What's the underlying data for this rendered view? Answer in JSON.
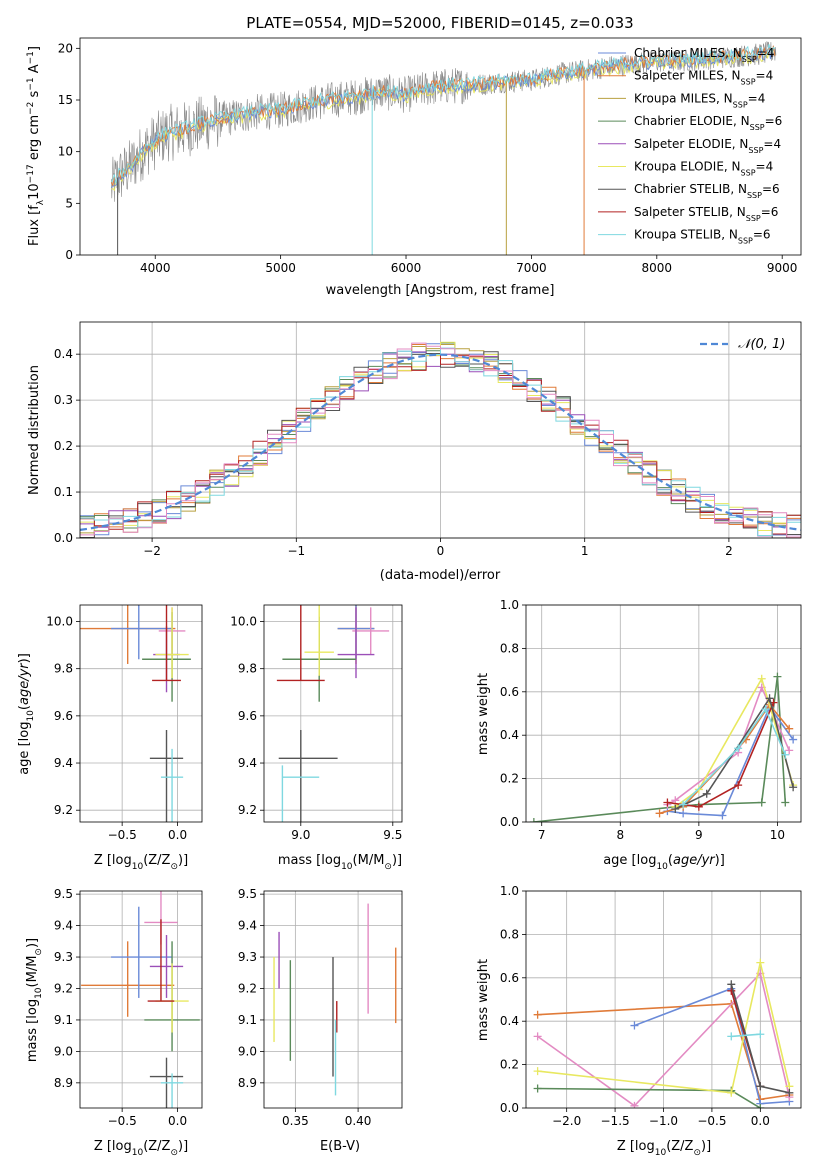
{
  "colors": {
    "Chabrier MILES": "#6a8ad8",
    "Salpeter MILES": "#e07b39",
    "Kroupa MILES": "#b8a040",
    "Chabrier ELODIE": "#5a8a5a",
    "Salpeter ELODIE": "#9b4fb8",
    "Kroupa ELODIE": "#e8e860",
    "Chabrier STELIB": "#555555",
    "Salpeter STELIB": "#b22222",
    "Kroupa STELIB": "#7fd8e0",
    "pink": "#e38bc3",
    "normal": "#4f88d6"
  },
  "chart_data": [
    {
      "id": "spectrum",
      "type": "line",
      "title": "PLATE=0554, MJD=52000, FIBERID=0145, z=0.033",
      "xlabel": "wavelength [Angstrom, rest frame]",
      "ylabel_parts": [
        "Flux [f",
        "λ",
        "10",
        "−17",
        " erg cm",
        "−2",
        " s",
        "−1",
        " A",
        "−1",
        "]"
      ],
      "xlim": [
        3400,
        9150
      ],
      "ylim": [
        0,
        21
      ],
      "xticks": [
        4000,
        5000,
        6000,
        7000,
        8000,
        9000
      ],
      "yticks": [
        0,
        5,
        10,
        15,
        20
      ],
      "legend_position": "upper-right",
      "legend": [
        {
          "name": "Chabrier MILES",
          "nssp": "4"
        },
        {
          "name": "Salpeter MILES",
          "nssp": "4"
        },
        {
          "name": "Kroupa MILES",
          "nssp": "4"
        },
        {
          "name": "Chabrier ELODIE",
          "nssp": "6"
        },
        {
          "name": "Salpeter ELODIE",
          "nssp": "4"
        },
        {
          "name": "Kroupa ELODIE",
          "nssp": "4"
        },
        {
          "name": "Chabrier STELIB",
          "nssp": "6"
        },
        {
          "name": "Salpeter STELIB",
          "nssp": "6"
        },
        {
          "name": "Kroupa STELIB",
          "nssp": "6"
        }
      ],
      "nssp_label": "N",
      "nssp_sub": "SSP",
      "continuum": {
        "x": [
          3650,
          3700,
          3800,
          3900,
          4000,
          4100,
          4200,
          4400,
          4600,
          4800,
          5000,
          5200,
          5400,
          5600,
          5800,
          6000,
          6200,
          6400,
          6600,
          6800,
          7000,
          7200,
          7400,
          7600,
          7800,
          8000,
          8200,
          8400,
          8600,
          8800,
          8950
        ],
        "y": [
          6.5,
          7.5,
          8.5,
          10.0,
          11.0,
          11.8,
          12.0,
          12.8,
          13.3,
          13.8,
          14.0,
          14.6,
          15.0,
          15.3,
          15.8,
          15.5,
          16.2,
          16.4,
          16.5,
          16.8,
          16.9,
          17.5,
          17.8,
          18.2,
          18.5,
          18.7,
          18.8,
          19.0,
          19.2,
          19.4,
          19.7
        ]
      },
      "dropouts": [
        {
          "x": 3700,
          "to": 0,
          "color": "Chabrier STELIB"
        },
        {
          "x": 5730,
          "to": 0,
          "color": "Kroupa STELIB"
        },
        {
          "x": 6800,
          "to": 0,
          "color": "Kroupa MILES"
        },
        {
          "x": 7420,
          "to": 0,
          "color": "Salpeter MILES"
        }
      ]
    },
    {
      "id": "residuals",
      "type": "step",
      "xlabel": "(data-model)/error",
      "ylabel": "Normed distribution",
      "xlim": [
        -2.5,
        2.5
      ],
      "ylim": [
        0,
        0.47
      ],
      "xticks": [
        -2,
        -1,
        0,
        1,
        2
      ],
      "yticks": [
        0.0,
        0.1,
        0.2,
        0.3,
        0.4
      ],
      "grid": true,
      "legend": {
        "label": "𝒩(0, 1)",
        "position": "upper-right"
      },
      "bin_width": 0.1
    },
    {
      "id": "age_vs_Z",
      "type": "errorbar",
      "xlabel_parts": [
        "Z [log",
        "10",
        "(Z/Z",
        "⊙",
        ")]"
      ],
      "ylabel_parts": [
        "age  [log",
        "10",
        "(",
        "age/yr",
        ")]"
      ],
      "xlim": [
        -0.88,
        0.22
      ],
      "ylim": [
        9.15,
        10.07
      ],
      "xticks": [
        -0.5,
        0.0
      ],
      "yticks": [
        9.2,
        9.4,
        9.6,
        9.8,
        10.0
      ],
      "grid": true,
      "points": [
        {
          "x": -0.45,
          "y": 9.97,
          "xerr": [
            0.43,
            0.43
          ],
          "yerr": [
            0.2,
            0.15
          ],
          "color": "Salpeter MILES"
        },
        {
          "x": -0.35,
          "y": 9.97,
          "xerr": [
            0.25,
            0.3
          ],
          "yerr": [
            0.2,
            0.13
          ],
          "color": "Chabrier MILES"
        },
        {
          "x": -0.05,
          "y": 9.96,
          "xerr": [
            0.12,
            0.12
          ],
          "yerr": [
            0.1,
            0.1
          ],
          "color": "pink"
        },
        {
          "x": -0.1,
          "y": 9.86,
          "xerr": [
            0.12,
            0.12
          ],
          "yerr": [
            0.12,
            0.16
          ],
          "color": "Salpeter ELODIE"
        },
        {
          "x": -0.05,
          "y": 9.84,
          "xerr": [
            0.27,
            0.17
          ],
          "yerr": [
            0.2,
            0.18
          ],
          "color": "Chabrier ELODIE"
        },
        {
          "x": -0.05,
          "y": 9.86,
          "xerr": [
            0.15,
            0.15
          ],
          "yerr": [
            0.2,
            0.1
          ],
          "color": "Kroupa ELODIE"
        },
        {
          "x": -0.1,
          "y": 9.75,
          "xerr": [
            0.13,
            0.13
          ],
          "yerr": [
            0.54,
            0.0
          ],
          "color": "Salpeter STELIB"
        },
        {
          "x": -0.1,
          "y": 9.42,
          "xerr": [
            0.15,
            0.15
          ],
          "yerr": [
            0.12,
            0.5
          ],
          "color": "Chabrier STELIB"
        },
        {
          "x": -0.05,
          "y": 9.34,
          "xerr": [
            0.1,
            0.1
          ],
          "yerr": [
            0.12,
            0.2
          ],
          "color": "Kroupa STELIB"
        }
      ]
    },
    {
      "id": "age_vs_mass",
      "type": "errorbar",
      "xlabel_parts": [
        "mass [log",
        "10",
        "(M/M",
        "⊙",
        ")]"
      ],
      "xlim": [
        8.8,
        9.55
      ],
      "ylim": [
        9.15,
        10.07
      ],
      "xticks": [
        9.0,
        9.5
      ],
      "yticks": [
        9.2,
        9.4,
        9.6,
        9.8,
        10.0
      ],
      "grid": true,
      "points": [
        {
          "x": 9.3,
          "y": 9.97,
          "xerr": [
            0.1,
            0.1
          ],
          "yerr": [
            0.2,
            0.15
          ],
          "color": "Salpeter MILES"
        },
        {
          "x": 9.3,
          "y": 9.97,
          "xerr": [
            0.1,
            0.1
          ],
          "yerr": [
            0.2,
            0.13
          ],
          "color": "Chabrier MILES"
        },
        {
          "x": 9.38,
          "y": 9.96,
          "xerr": [
            0.1,
            0.1
          ],
          "yerr": [
            0.1,
            0.1
          ],
          "color": "pink"
        },
        {
          "x": 9.3,
          "y": 9.86,
          "xerr": [
            0.1,
            0.1
          ],
          "yerr": [
            0.2,
            0.1
          ],
          "color": "Salpeter ELODIE"
        },
        {
          "x": 9.1,
          "y": 9.84,
          "xerr": [
            0.2,
            0.2
          ],
          "yerr": [
            0.18,
            0.18
          ],
          "color": "Chabrier ELODIE"
        },
        {
          "x": 9.1,
          "y": 9.87,
          "xerr": [
            0.08,
            0.08
          ],
          "yerr": [
            0.2,
            0.1
          ],
          "color": "Kroupa ELODIE"
        },
        {
          "x": 9.0,
          "y": 9.75,
          "xerr": [
            0.13,
            0.13
          ],
          "yerr": [
            0.54,
            0.0
          ],
          "color": "Salpeter STELIB"
        },
        {
          "x": 9.0,
          "y": 9.42,
          "xerr": [
            0.12,
            0.2
          ],
          "yerr": [
            0.12,
            0.5
          ],
          "color": "Chabrier STELIB"
        },
        {
          "x": 8.9,
          "y": 9.34,
          "xerr": [
            0.0,
            0.2
          ],
          "yerr": [
            0.05,
            0.5
          ],
          "color": "Kroupa STELIB"
        }
      ]
    },
    {
      "id": "weight_vs_age",
      "type": "line",
      "xlabel_parts": [
        "age  [log",
        "10",
        "(",
        "age/yr",
        ")]"
      ],
      "ylabel": "mass weight",
      "xlim": [
        6.8,
        10.3
      ],
      "ylim": [
        0,
        1
      ],
      "xticks": [
        7,
        8,
        9,
        10
      ],
      "yticks": [
        0.0,
        0.2,
        0.4,
        0.6,
        0.8,
        1.0
      ],
      "grid": true,
      "series": [
        {
          "color": "Chabrier ELODIE",
          "x": [
            6.9,
            8.7,
            9.0,
            9.8,
            10.0,
            10.1
          ],
          "y": [
            0.0,
            0.07,
            0.08,
            0.09,
            0.67,
            0.09
          ]
        },
        {
          "color": "Chabrier MILES",
          "x": [
            8.6,
            8.8,
            9.3,
            9.9,
            10.2
          ],
          "y": [
            0.05,
            0.04,
            0.03,
            0.53,
            0.38
          ]
        },
        {
          "color": "Salpeter MILES",
          "x": [
            8.5,
            8.8,
            9.6,
            9.9,
            10.15
          ],
          "y": [
            0.04,
            0.07,
            0.38,
            0.54,
            0.43
          ]
        },
        {
          "color": "pink",
          "x": [
            8.6,
            8.7,
            9.5,
            9.8,
            10.15
          ],
          "y": [
            0.08,
            0.1,
            0.32,
            0.62,
            0.33
          ]
        },
        {
          "color": "Kroupa ELODIE",
          "x": [
            8.7,
            9.0,
            9.8,
            10.2
          ],
          "y": [
            0.07,
            0.15,
            0.66,
            0.17
          ]
        },
        {
          "color": "Salpeter STELIB",
          "x": [
            8.6,
            9.0,
            9.5,
            9.95
          ],
          "y": [
            0.09,
            0.07,
            0.17,
            0.55
          ]
        },
        {
          "color": "Chabrier STELIB",
          "x": [
            8.7,
            9.1,
            9.9,
            10.2
          ],
          "y": [
            0.06,
            0.13,
            0.57,
            0.16
          ]
        },
        {
          "color": "Kroupa STELIB",
          "x": [
            8.8,
            9.5,
            9.85,
            10.1
          ],
          "y": [
            0.08,
            0.34,
            0.52,
            0.31
          ]
        }
      ]
    },
    {
      "id": "mass_vs_Z",
      "type": "errorbar",
      "xlabel_parts": [
        "Z [log",
        "10",
        "(Z/Z",
        "⊙",
        ")]"
      ],
      "ylabel_parts": [
        "mass [log",
        "10",
        "(M/M",
        "⊙",
        ")]"
      ],
      "xlim": [
        -0.88,
        0.22
      ],
      "ylim": [
        8.82,
        9.51
      ],
      "xticks": [
        -0.5,
        0.0
      ],
      "yticks": [
        8.9,
        9.0,
        9.1,
        9.2,
        9.3,
        9.4,
        9.5
      ],
      "grid": true,
      "points": [
        {
          "x": -0.45,
          "y": 9.21,
          "xerr": [
            0.42,
            0.42
          ],
          "yerr": [
            0.14,
            0.1
          ],
          "color": "Salpeter MILES"
        },
        {
          "x": -0.35,
          "y": 9.3,
          "xerr": [
            0.25,
            0.3
          ],
          "yerr": [
            0.16,
            0.13
          ],
          "color": "Chabrier MILES"
        },
        {
          "x": -0.15,
          "y": 9.41,
          "xerr": [
            0.15,
            0.15
          ],
          "yerr": [
            0.1,
            0.07
          ],
          "color": "pink"
        },
        {
          "x": -0.1,
          "y": 9.27,
          "xerr": [
            0.15,
            0.15
          ],
          "yerr": [
            0.1,
            0.1
          ],
          "color": "Salpeter ELODIE"
        },
        {
          "x": -0.05,
          "y": 9.1,
          "xerr": [
            0.25,
            0.25
          ],
          "yerr": [
            0.25,
            0.1
          ],
          "color": "Chabrier ELODIE"
        },
        {
          "x": -0.05,
          "y": 9.16,
          "xerr": [
            0.15,
            0.15
          ],
          "yerr": [
            0.12,
            0.1
          ],
          "color": "Kroupa ELODIE"
        },
        {
          "x": -0.15,
          "y": 9.16,
          "xerr": [
            0.12,
            0.12
          ],
          "yerr": [
            0.26,
            0.0
          ],
          "color": "Salpeter STELIB"
        },
        {
          "x": -0.1,
          "y": 8.92,
          "xerr": [
            0.15,
            0.15
          ],
          "yerr": [
            0.06,
            0.2
          ],
          "color": "Chabrier STELIB"
        },
        {
          "x": -0.05,
          "y": 8.9,
          "xerr": [
            0.1,
            0.1
          ],
          "yerr": [
            0.03,
            0.2
          ],
          "color": "Kroupa STELIB"
        }
      ]
    },
    {
      "id": "mass_vs_ebv",
      "type": "errorbar",
      "xlabel": "E(B-V)",
      "xlim": [
        0.325,
        0.435
      ],
      "ylim": [
        8.82,
        9.51
      ],
      "xticks": [
        0.35,
        0.4
      ],
      "yticks": [
        8.9,
        9.0,
        9.1,
        9.2,
        9.3,
        9.4,
        9.5
      ],
      "grid": true,
      "points": [
        {
          "x": 0.337,
          "y": 9.29,
          "yerr": [
            0.09,
            0.09
          ],
          "color": "Salpeter ELODIE"
        },
        {
          "x": 0.333,
          "y": 9.17,
          "yerr": [
            0.13,
            0.14
          ],
          "color": "Kroupa ELODIE"
        },
        {
          "x": 0.346,
          "y": 9.1,
          "yerr": [
            0.19,
            0.13
          ],
          "color": "Chabrier ELODIE"
        },
        {
          "x": 0.38,
          "y": 9.1,
          "yerr": [
            0.2,
            0.18
          ],
          "color": "Chabrier STELIB"
        },
        {
          "x": 0.383,
          "y": 9.12,
          "yerr": [
            0.04,
            0.06
          ],
          "color": "Salpeter STELIB"
        },
        {
          "x": 0.382,
          "y": 8.98,
          "yerr": [
            0.12,
            0.12
          ],
          "color": "Kroupa STELIB"
        },
        {
          "x": 0.408,
          "y": 9.3,
          "yerr": [
            0.17,
            0.18
          ],
          "color": "pink"
        },
        {
          "x": 0.43,
          "y": 9.2,
          "yerr": [
            0.13,
            0.11
          ],
          "color": "Salpeter MILES"
        }
      ]
    },
    {
      "id": "weight_vs_Z",
      "type": "line",
      "xlabel_parts": [
        "Z [log",
        "10",
        "(Z/Z",
        "⊙",
        ")]"
      ],
      "ylabel": "mass weight",
      "xlim": [
        -2.42,
        0.42
      ],
      "ylim": [
        0,
        1
      ],
      "xticks": [
        -2.0,
        -1.5,
        -1.0,
        -0.5,
        0.0
      ],
      "yticks": [
        0.0,
        0.2,
        0.4,
        0.6,
        0.8,
        1.0
      ],
      "grid": true,
      "series": [
        {
          "color": "Salpeter MILES",
          "x": [
            -2.3,
            -0.3,
            0.0,
            0.3
          ],
          "y": [
            0.43,
            0.48,
            0.04,
            0.06
          ]
        },
        {
          "color": "Chabrier MILES",
          "x": [
            -1.3,
            -0.3,
            0.0,
            0.3
          ],
          "y": [
            0.38,
            0.55,
            0.02,
            0.03
          ]
        },
        {
          "color": "pink",
          "x": [
            -2.3,
            -1.3,
            0.0,
            0.3
          ],
          "y": [
            0.33,
            0.01,
            0.62,
            0.05
          ]
        },
        {
          "color": "Chabrier ELODIE",
          "x": [
            -2.3,
            -0.3,
            0.0
          ],
          "y": [
            0.09,
            0.08,
            0.0
          ]
        },
        {
          "color": "Kroupa ELODIE",
          "x": [
            -2.3,
            -0.3,
            0.0,
            0.3
          ],
          "y": [
            0.17,
            0.07,
            0.67,
            0.1
          ]
        },
        {
          "color": "Salpeter STELIB",
          "x": [
            -0.3,
            0.0
          ],
          "y": [
            0.54,
            0.1
          ]
        },
        {
          "color": "Chabrier STELIB",
          "x": [
            -0.3,
            0.0,
            0.3
          ],
          "y": [
            0.57,
            0.1,
            0.07
          ]
        },
        {
          "color": "Kroupa STELIB",
          "x": [
            -0.3,
            0.0
          ],
          "y": [
            0.33,
            0.34
          ]
        }
      ]
    }
  ]
}
